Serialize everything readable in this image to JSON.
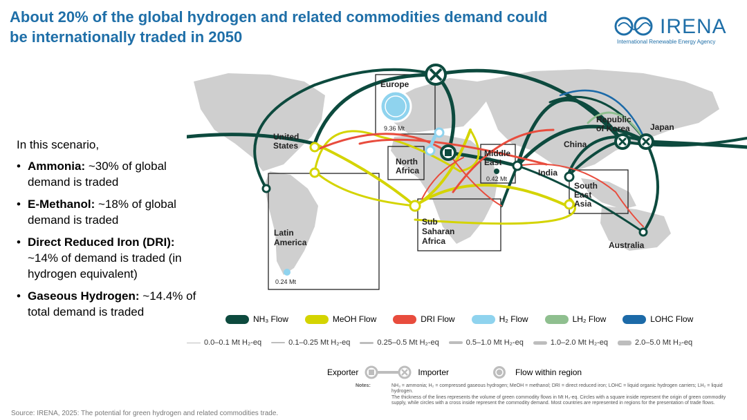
{
  "title": "About 20% of the global hydrogen and related commodities demand could be internationally traded in 2050",
  "logo": {
    "name": "IRENA",
    "subtitle": "International Renewable Energy Agency"
  },
  "left_panel": {
    "intro": "In this scenario,",
    "items": [
      {
        "bold": "Ammonia:",
        "text": " ~30% of global demand is traded"
      },
      {
        "bold": "E-Methanol:",
        "text": " ~18% of global demand is traded"
      },
      {
        "bold": "Direct Reduced Iron (DRI):",
        "text": " ~14% of demand is traded (in hydrogen equivalent)"
      },
      {
        "bold": "Gaseous Hydrogen:",
        "text": " ~14.4% of total demand is traded"
      }
    ]
  },
  "map": {
    "regions": {
      "europe": "Europe",
      "europe_value": "9.36 Mt",
      "united_states": "United\nStates",
      "north_africa": "North\nAfrica",
      "middle_east": "Middle\nEast",
      "middle_east_value": "0.42 Mt",
      "india": "India",
      "china": "China",
      "republic_of_korea": "Republic\nof Korea",
      "japan": "Japan",
      "south_east_asia": "South\nEast\nAsia",
      "latin_america": "Latin\nAmerica",
      "latin_america_value": "0.24 Mt",
      "sub_saharan_africa": "Sub\nSaharan\nAfrica",
      "australia": "Australia"
    }
  },
  "legend": {
    "flows": [
      {
        "label": "NH₃ Flow",
        "color": "#0d4a3e"
      },
      {
        "label": "MeOH Flow",
        "color": "#d4d400"
      },
      {
        "label": "DRI Flow",
        "color": "#e84c3d"
      },
      {
        "label": "H₂ Flow",
        "color": "#8fd3ee"
      },
      {
        "label": "LH₂ Flow",
        "color": "#8fbf8f"
      },
      {
        "label": "LOHC Flow",
        "color": "#1c6aa8"
      }
    ],
    "thickness": [
      "0.0–0.1 Mt H₂-eq",
      "0.1–0.25 Mt H₂-eq",
      "0.25–0.5 Mt H₂-eq",
      "0.5–1.0 Mt H₂-eq",
      "1.0–2.0 Mt H₂-eq",
      "2.0–5.0 Mt H₂-eq"
    ],
    "exporter": "Exporter",
    "importer": "Importer",
    "within": "Flow within region"
  },
  "notes": {
    "label": "Notes:",
    "line1": "NH₃ = ammonia; H₂ = compressed gaseous hydrogen; MeOH = methanol; DRI = direct reduced iron; LOHC = liquid organic hydrogen carriers; LH₂ = liquid hydrogen.",
    "line2": "The thickness of the lines represents the volume of green commodity flows in Mt H₂-eq. Circles with a square inside represent the origin of green commodity supply, while circles with a cross inside represent the commodity demand. Most countries are represented in regions for the presentation of trade flows."
  },
  "source": "Source: IRENA, 2025: The potential for green hydrogen and related commodities trade."
}
